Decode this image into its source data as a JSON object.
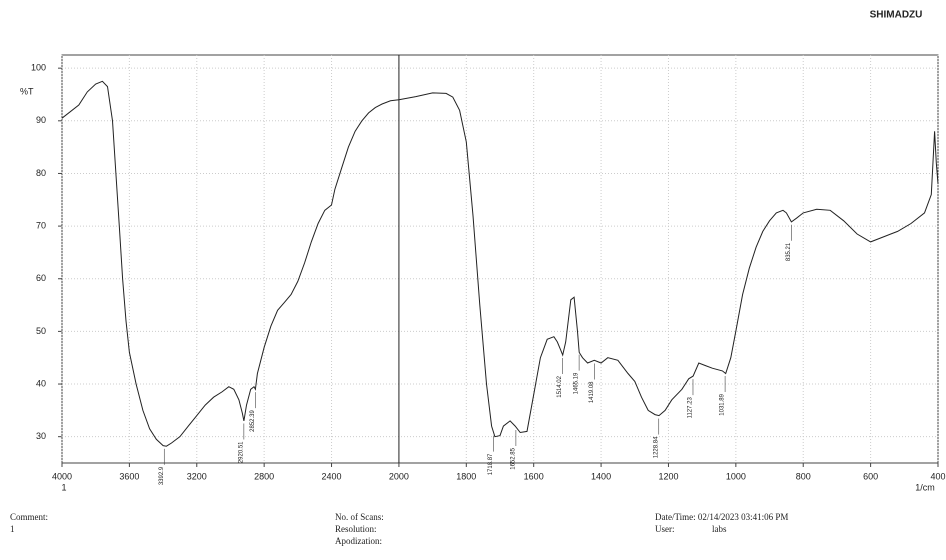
{
  "chart_data": {
    "type": "line",
    "brand": "SHIMADZU",
    "ylabel": "%T",
    "xlabel": "1/cm",
    "page": "1",
    "xlim": [
      4000,
      400
    ],
    "ylim": [
      25,
      102.5
    ],
    "x_break": 2000,
    "x_break_factor": 2,
    "xticks": [
      4000,
      3600,
      3200,
      2800,
      2400,
      2000,
      1800,
      1600,
      1400,
      1200,
      1000,
      800,
      600,
      400
    ],
    "yticks": [
      30,
      40,
      50,
      60,
      70,
      80,
      90,
      100
    ],
    "grid": true,
    "series": [
      {
        "name": "%T",
        "color": "#222222",
        "x": [
          4000,
          3900,
          3850,
          3800,
          3760,
          3730,
          3700,
          3680,
          3660,
          3640,
          3620,
          3600,
          3560,
          3520,
          3480,
          3440,
          3400,
          3380,
          3350,
          3300,
          3250,
          3200,
          3150,
          3100,
          3050,
          3010,
          2980,
          2950,
          2930,
          2920,
          2905,
          2880,
          2860,
          2852,
          2840,
          2800,
          2760,
          2720,
          2680,
          2640,
          2600,
          2560,
          2520,
          2480,
          2440,
          2400,
          2380,
          2340,
          2300,
          2260,
          2220,
          2180,
          2140,
          2100,
          2050,
          2000,
          1950,
          1900,
          1860,
          1840,
          1820,
          1800,
          1780,
          1760,
          1740,
          1725,
          1715,
          1700,
          1690,
          1670,
          1655,
          1640,
          1620,
          1600,
          1580,
          1560,
          1540,
          1530,
          1520,
          1514,
          1505,
          1490,
          1480,
          1470,
          1465,
          1455,
          1440,
          1420,
          1400,
          1380,
          1350,
          1320,
          1300,
          1280,
          1260,
          1240,
          1228,
          1210,
          1190,
          1160,
          1140,
          1127,
          1110,
          1090,
          1070,
          1040,
          1030,
          1015,
          1000,
          980,
          960,
          940,
          920,
          900,
          880,
          860,
          850,
          835,
          820,
          800,
          760,
          720,
          680,
          640,
          600,
          560,
          520,
          480,
          440,
          420,
          410,
          405,
          400
        ],
        "values": [
          90.5,
          93,
          95.5,
          97,
          97.5,
          96.5,
          90,
          80,
          70,
          60,
          52,
          46,
          40,
          35,
          31.5,
          29.5,
          28.3,
          28.2,
          28.8,
          30,
          32,
          34,
          36,
          37.5,
          38.5,
          39.5,
          39,
          37,
          34.5,
          33,
          36,
          39,
          39.5,
          39,
          42,
          47,
          51,
          54,
          55.5,
          57,
          59.5,
          63,
          67,
          70.5,
          73,
          74,
          77,
          81,
          85,
          88,
          90,
          91.5,
          92.5,
          93.2,
          93.8,
          94,
          94.6,
          95.3,
          95.2,
          94.5,
          92,
          86,
          72,
          55,
          40,
          32,
          30,
          30.2,
          32,
          33,
          32,
          30.8,
          31,
          38,
          45,
          48.5,
          49,
          48,
          46.5,
          45.5,
          48,
          56,
          56.5,
          50,
          46,
          45,
          44,
          44.5,
          44,
          45,
          44.5,
          42,
          40.5,
          37.5,
          35,
          34.2,
          34,
          35,
          37,
          39,
          41,
          41.5,
          44,
          43.5,
          43,
          42.5,
          42,
          45,
          50,
          57,
          62,
          66,
          69,
          71,
          72.5,
          73,
          72.5,
          70.8,
          71.5,
          72.5,
          73.2,
          73,
          71,
          68.5,
          67,
          68,
          69,
          70.5,
          72.5,
          76,
          88,
          82,
          78
        ]
      }
    ],
    "peaks": [
      3392.9,
      2920.51,
      2852.39,
      1718.87,
      1652.85,
      1514.02,
      1465.19,
      1419.08,
      1228.84,
      1127.23,
      1031.89,
      835.21
    ],
    "footer": {
      "comment": "Comment:",
      "comment_value": "1",
      "scans": "No. of Scans:",
      "resolution": "Resolution:",
      "apodization": "Apodization:",
      "datetime": "Date/Time: 02/14/2023 03:41:06 PM",
      "user": "User:",
      "user_value": "labs"
    }
  }
}
